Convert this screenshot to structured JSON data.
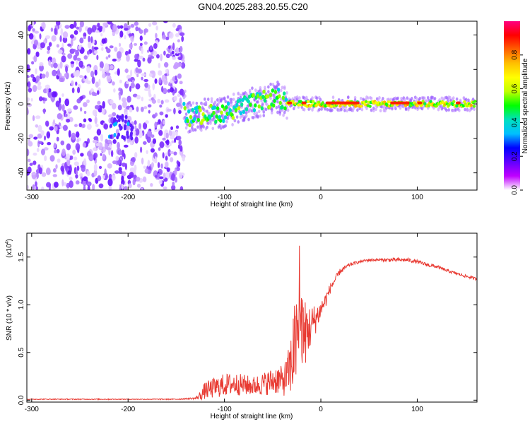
{
  "chart_data": [
    {
      "type": "heatmap",
      "title": "GN04.2025.283.20.55.C20",
      "xlabel": "Height of straight line (km)",
      "ylabel": "Frequency (Hz)",
      "xlim": [
        -305,
        162
      ],
      "ylim": [
        -50,
        48
      ],
      "xticks": [
        -300,
        -200,
        -100,
        0,
        100
      ],
      "yticks": [
        -40,
        -20,
        0,
        20,
        40
      ],
      "xtick_labels": [
        "-300",
        "-200",
        "-100",
        "0",
        "100"
      ],
      "ytick_labels": [
        "-40",
        "-20",
        "0",
        "20",
        "40"
      ],
      "description_points": {
        "noise_region_x": [
          -305,
          -142
        ],
        "signal_track": [
          {
            "x": -140,
            "y": -8
          },
          {
            "x": -120,
            "y": -6
          },
          {
            "x": -100,
            "y": -5
          },
          {
            "x": -80,
            "y": -1
          },
          {
            "x": -60,
            "y": 2
          },
          {
            "x": -45,
            "y": 4
          },
          {
            "x": -35,
            "y": 0
          },
          {
            "x": -20,
            "y": 0
          },
          {
            "x": 0,
            "y": 0
          },
          {
            "x": 50,
            "y": 0
          },
          {
            "x": 100,
            "y": 0
          },
          {
            "x": 160,
            "y": 0
          }
        ]
      },
      "colorbar": {
        "label": "Normalized spectral amplitude",
        "range": [
          0,
          1
        ],
        "ticks": [
          0.0,
          0.2,
          0.4,
          0.6,
          0.8
        ],
        "tick_labels": [
          "0.0",
          "0.2",
          "0.4",
          "0.6",
          "0.8"
        ],
        "colors": [
          "#ffffff",
          "#c000ff",
          "#6000ff",
          "#0000ff",
          "#00c0ff",
          "#00e0c0",
          "#00ff00",
          "#c0ff00",
          "#ffff00",
          "#ffc000",
          "#ff6000",
          "#ff0000",
          "#ff0080"
        ]
      }
    },
    {
      "type": "line",
      "xlabel": "Height of straight line (km)",
      "ylabel": "SNR (10 * v/v)",
      "scale_label": "(x10",
      "scale_exp": "4",
      "scale_close": ")",
      "xlim": [
        -305,
        162
      ],
      "ylim": [
        -0.02,
        1.75
      ],
      "xticks": [
        -300,
        -200,
        -100,
        0,
        100
      ],
      "yticks": [
        0.0,
        0.5,
        1.0,
        1.5
      ],
      "xtick_labels": [
        "-300",
        "-200",
        "-100",
        "0",
        "100"
      ],
      "ytick_labels": [
        "0.0",
        "0.5",
        "1.0",
        "1.5"
      ],
      "series": [
        {
          "name": "SNR",
          "color": "#e83a32",
          "x": [
            -305,
            -250,
            -200,
            -150,
            -130,
            -125,
            -120,
            -110,
            -100,
            -90,
            -80,
            -70,
            -60,
            -50,
            -45,
            -40,
            -35,
            -30,
            -28,
            -25,
            -22,
            -20,
            -18,
            -15,
            -10,
            -5,
            0,
            5,
            10,
            20,
            30,
            40,
            50,
            60,
            70,
            80,
            90,
            100,
            110,
            120,
            130,
            140,
            150,
            162
          ],
          "y": [
            0.01,
            0.01,
            0.01,
            0.01,
            0.02,
            0.05,
            0.1,
            0.13,
            0.16,
            0.17,
            0.16,
            0.15,
            0.17,
            0.2,
            0.22,
            0.2,
            0.25,
            0.4,
            0.55,
            0.6,
            0.75,
            0.8,
            0.7,
            0.72,
            0.78,
            0.86,
            0.95,
            1.05,
            1.18,
            1.35,
            1.42,
            1.45,
            1.47,
            1.47,
            1.47,
            1.47,
            1.47,
            1.45,
            1.42,
            1.4,
            1.36,
            1.33,
            1.3,
            1.27
          ],
          "noise": [
            0.005,
            0.005,
            0.005,
            0.005,
            0.01,
            0.05,
            0.09,
            0.11,
            0.12,
            0.12,
            0.11,
            0.1,
            0.12,
            0.14,
            0.16,
            0.15,
            0.22,
            0.35,
            0.45,
            0.5,
            0.5,
            0.45,
            0.4,
            0.32,
            0.22,
            0.15,
            0.1,
            0.08,
            0.05,
            0.03,
            0.02,
            0.015,
            0.015,
            0.015,
            0.02,
            0.02,
            0.02,
            0.02,
            0.02,
            0.02,
            0.015,
            0.015,
            0.015,
            0.015
          ]
        }
      ]
    }
  ]
}
